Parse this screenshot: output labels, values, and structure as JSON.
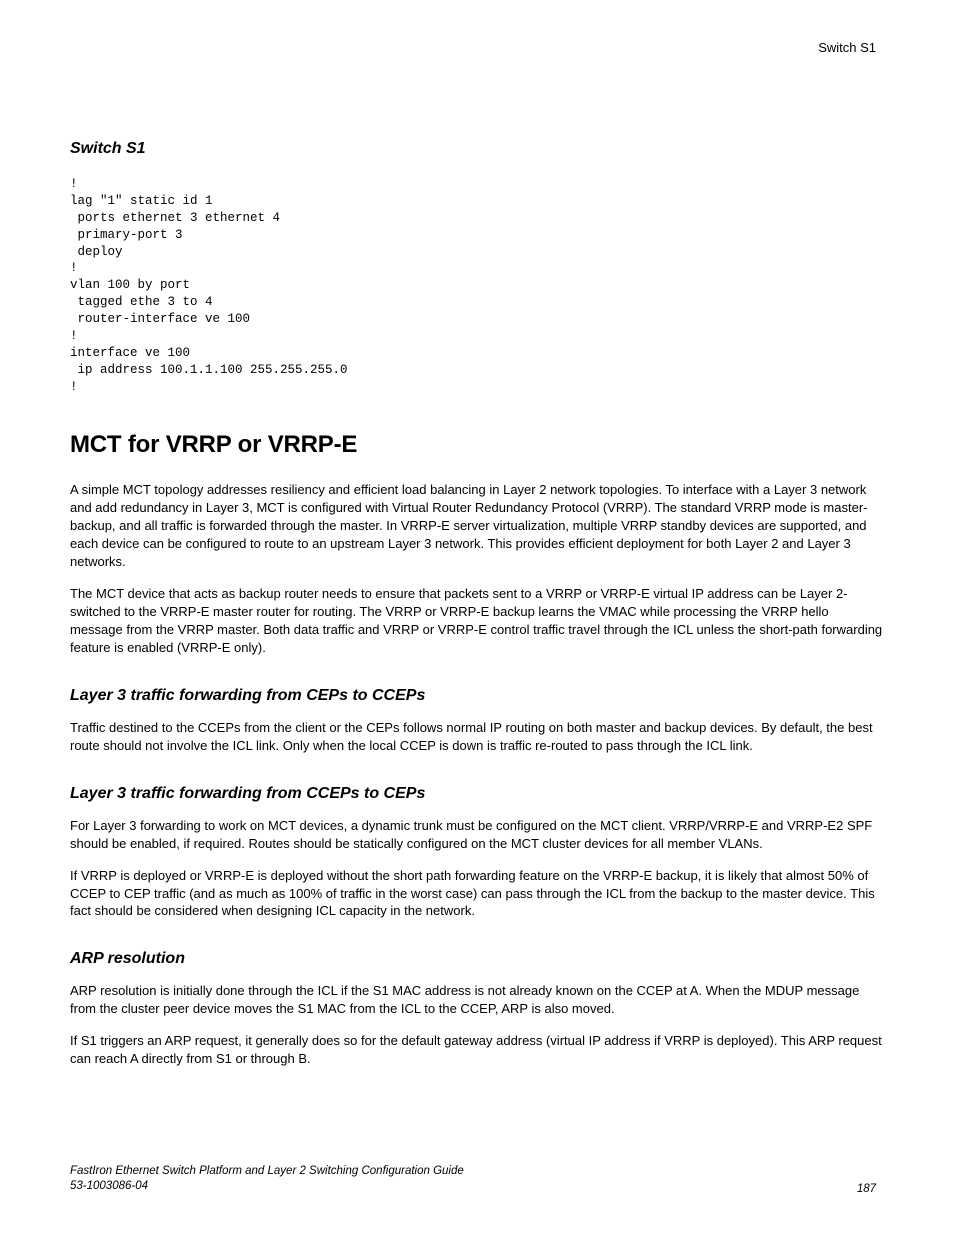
{
  "runningHead": "Switch S1",
  "section1": {
    "heading": "Switch S1",
    "code": "!\nlag \"1\" static id 1\n ports ethernet 3 ethernet 4\n primary-port 3\n deploy\n!\nvlan 100 by port\n tagged ethe 3 to 4\n router-interface ve 100\n!\ninterface ve 100\n ip address 100.1.1.100 255.255.255.0\n!"
  },
  "main": {
    "heading": "MCT for VRRP or VRRP-E",
    "p1": "A simple MCT topology addresses resiliency and efficient load balancing in Layer 2 network topologies. To interface with a Layer 3 network and add redundancy in Layer 3, MCT is configured with Virtual Router Redundancy Protocol (VRRP). The standard VRRP mode is master-backup, and all traffic is forwarded through the master. In VRRP-E server virtualization, multiple VRRP standby devices are supported, and each device can be configured to route to an upstream Layer 3 network. This provides efficient deployment for both Layer 2 and Layer 3 networks.",
    "p2": "The MCT device that acts as backup router needs to ensure that packets sent to a VRRP or VRRP-E virtual IP address can be Layer 2-switched to the VRRP-E master router for routing. The VRRP or VRRP-E backup learns the VMAC while processing the VRRP hello message from the VRRP master. Both data traffic and VRRP or VRRP-E control traffic travel through the ICL unless the short-path forwarding feature is enabled (VRRP-E only)."
  },
  "sub1": {
    "heading": "Layer 3 traffic forwarding from CEPs to CCEPs",
    "p1": "Traffic destined to the CCEPs from the client or the CEPs follows normal IP routing on both master and backup devices. By default, the best route should not involve the ICL link. Only when the local CCEP is down is traffic re-routed to pass through the ICL link."
  },
  "sub2": {
    "heading": "Layer 3 traffic forwarding from CCEPs to CEPs",
    "p1": "For Layer 3 forwarding to work on MCT devices, a dynamic trunk must be configured on the MCT client. VRRP/VRRP-E and VRRP-E2 SPF should be enabled, if required. Routes should be statically configured on the MCT cluster devices for all member VLANs.",
    "p2": "If VRRP is deployed or VRRP-E is deployed without the short path forwarding feature on the VRRP-E backup, it is likely that almost 50% of CCEP to CEP traffic (and as much as 100% of traffic in the worst case) can pass through the ICL from the backup to the master device. This fact should be considered when designing ICL capacity in the network."
  },
  "sub3": {
    "heading": "ARP resolution",
    "p1": "ARP resolution is initially done through the ICL if the S1 MAC address is not already known on the CCEP at A. When the MDUP message from the cluster peer device moves the S1 MAC from the ICL to the CCEP, ARP is also moved.",
    "p2": "If S1 triggers an ARP request, it generally does so for the default gateway address (virtual IP address if VRRP is deployed). This ARP request can reach A directly from S1 or through B."
  },
  "footer": {
    "title": "FastIron Ethernet Switch Platform and Layer 2 Switching Configuration Guide",
    "docnum": "53-1003086-04",
    "page": "187"
  }
}
